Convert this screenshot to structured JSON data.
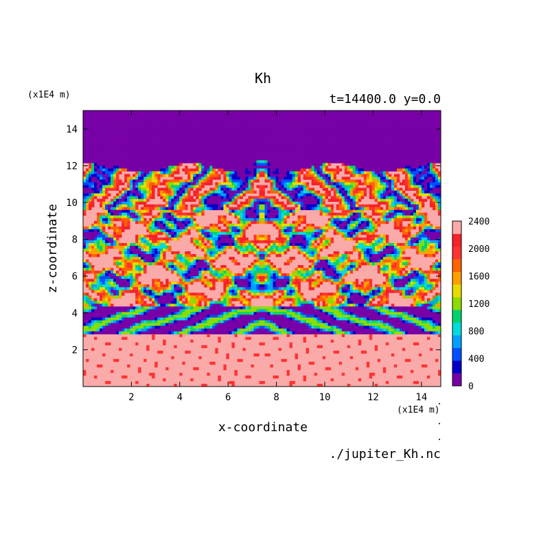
{
  "chart_data": {
    "type": "heatmap",
    "title": "Kh",
    "subtitle": "t=14400.0 y=0.0",
    "xlabel": "x-coordinate",
    "ylabel": "z-coordinate",
    "x_unit": "(x1E4 m)",
    "y_unit": "(x1E4 m)",
    "source": "./jupiter_Kh.nc",
    "xlim": [
      0,
      14.8
    ],
    "ylim": [
      0,
      15
    ],
    "x_ticks": [
      "2",
      "4",
      "6",
      "8",
      "10",
      "12",
      "14"
    ],
    "y_ticks": [
      "2",
      "4",
      "6",
      "8",
      "10",
      "12",
      "14"
    ],
    "grid": false,
    "symmetry": "mirror about x=7.4",
    "colorbar": {
      "levels": [
        0,
        200,
        400,
        600,
        800,
        1000,
        1200,
        1400,
        1600,
        1800,
        2000,
        2200,
        2400
      ],
      "colors": [
        "#7700a7",
        "#0000c8",
        "#0050ff",
        "#00a0ff",
        "#00dcdc",
        "#00d26e",
        "#8cdc00",
        "#e6dc00",
        "#ffa000",
        "#ff6400",
        "#ff3232",
        "#f5222a",
        "#fbaaaa"
      ],
      "tick_labels": [
        "0",
        "400",
        "800",
        "1200",
        "1600",
        "2000",
        "2400"
      ]
    },
    "bands": [
      {
        "z_range": [
          0,
          3.0
        ],
        "value": 2400,
        "note": "lower layer, scattered 2000 patches"
      },
      {
        "z_range": [
          3.0,
          4.2
        ],
        "value": 300,
        "note": "low-Kh layer near z=3.5-4"
      },
      {
        "z_range": [
          4.2,
          9.5
        ],
        "value": 2400,
        "note": "turbulent mixed layer with 0-2200 eddies"
      },
      {
        "z_range": [
          9.5,
          12.0
        ],
        "value": 1200,
        "note": "wavy filamentary transition zone"
      },
      {
        "z_range": [
          12.0,
          15
        ],
        "value": 0,
        "note": "upper layer uniform"
      }
    ]
  }
}
